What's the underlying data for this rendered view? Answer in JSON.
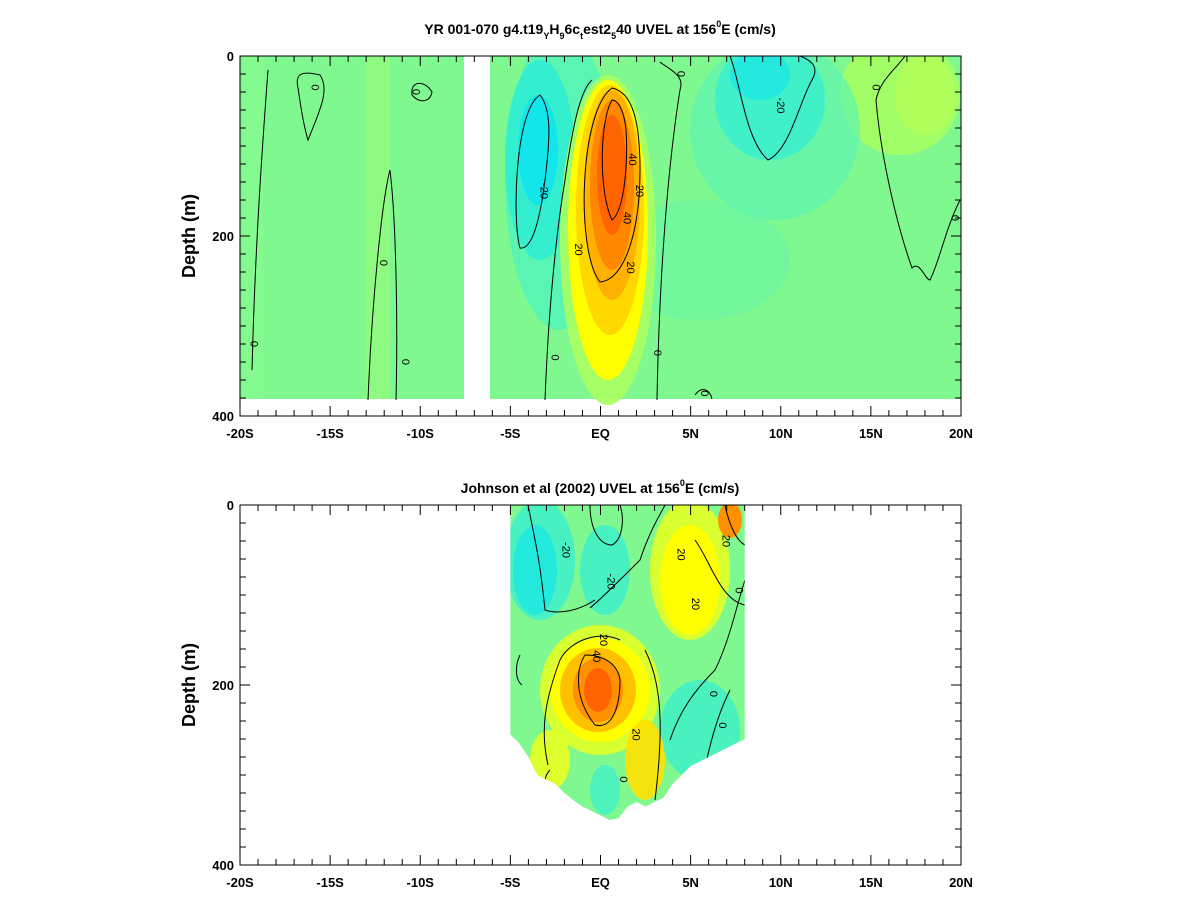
{
  "chart_data": [
    {
      "type": "heatmap",
      "title": {
        "prefix": "YR 001-070 g4.t19",
        "s1": "Y",
        "m1": "H",
        "s2": "9",
        "m2": "6c",
        "s3": "t",
        "m3": "est2",
        "s4": "5",
        "m4": "40 UVEL at 156",
        "sup": "0",
        "suffix": "E (cm/s)"
      },
      "ylabel": "Depth (m)",
      "xlim": [
        -20,
        20
      ],
      "ylim": [
        400,
        0
      ],
      "y_inverted": true,
      "x_ticks": [
        "-20S",
        "-15S",
        "-10S",
        "-5S",
        "EQ",
        "5N",
        "10N",
        "15N",
        "20N"
      ],
      "x_tick_values": [
        -20,
        -15,
        -10,
        -5,
        0,
        5,
        10,
        15,
        20
      ],
      "y_ticks": [
        "0",
        "200",
        "400"
      ],
      "y_tick_values": [
        0,
        200,
        400
      ],
      "colorscale": [
        "#00e0f8",
        "#40f0c8",
        "#80f890",
        "#a8ff60",
        "#ffff00",
        "#ffc000",
        "#ff8800",
        "#ff5000"
      ],
      "data_extent": {
        "lat": [
          -20,
          20
        ],
        "depth": [
          0,
          383
        ]
      },
      "gap": [
        -7.6,
        -6.2
      ],
      "features": [
        {
          "kind": "core",
          "lat": 0,
          "depth": 175,
          "value": 55
        },
        {
          "kind": "core",
          "lat": -3.5,
          "depth": 120,
          "value": -25
        },
        {
          "kind": "core",
          "lat": 10,
          "depth": 80,
          "value": -25
        },
        {
          "kind": "core",
          "lat": 19,
          "depth": 80,
          "value": 12
        }
      ],
      "contour_labels": [
        {
          "text": "0",
          "lat": -15.8,
          "depth": 35
        },
        {
          "text": "0",
          "lat": -10.2,
          "depth": 40
        },
        {
          "text": "0",
          "lat": -12,
          "depth": 230
        },
        {
          "text": "0",
          "lat": -10.8,
          "depth": 340
        },
        {
          "text": "0",
          "lat": -19.2,
          "depth": 320
        },
        {
          "text": "-20",
          "lat": -3.1,
          "depth": 150
        },
        {
          "text": "20",
          "lat": -1.2,
          "depth": 215
        },
        {
          "text": "40",
          "lat": 1.8,
          "depth": 115
        },
        {
          "text": "20",
          "lat": 2.2,
          "depth": 150
        },
        {
          "text": "40",
          "lat": 1.5,
          "depth": 180
        },
        {
          "text": "20",
          "lat": 1.7,
          "depth": 235
        },
        {
          "text": "0",
          "lat": -2.5,
          "depth": 335
        },
        {
          "text": "0",
          "lat": 3.2,
          "depth": 330
        },
        {
          "text": "0",
          "lat": 4.5,
          "depth": 20
        },
        {
          "text": "-20",
          "lat": 10,
          "depth": 55
        },
        {
          "text": "0",
          "lat": 15.3,
          "depth": 35
        },
        {
          "text": "0",
          "lat": 19.7,
          "depth": 180
        },
        {
          "text": "0",
          "lat": 5.8,
          "depth": 375
        }
      ]
    },
    {
      "type": "heatmap",
      "title": {
        "prefix": "Johnson et al (2002) UVEL at 156",
        "sup": "0",
        "suffix": "E (cm/s)"
      },
      "ylabel": "Depth (m)",
      "xlim": [
        -20,
        20
      ],
      "ylim": [
        400,
        0
      ],
      "y_inverted": true,
      "x_ticks": [
        "-20S",
        "-15S",
        "-10S",
        "-5S",
        "EQ",
        "5N",
        "10N",
        "15N",
        "20N"
      ],
      "x_tick_values": [
        -20,
        -15,
        -10,
        -5,
        0,
        5,
        10,
        15,
        20
      ],
      "y_ticks": [
        "0",
        "200",
        "400"
      ],
      "y_tick_values": [
        0,
        200,
        400
      ],
      "colorscale": [
        "#00e0f8",
        "#40f0c8",
        "#80f890",
        "#a8ff60",
        "#ffff00",
        "#ffc000",
        "#ff8800",
        "#ff5000"
      ],
      "data_extent": {
        "lat": [
          -5,
          8
        ]
      },
      "bottom_boundary_depth": [
        [
          -5,
          255
        ],
        [
          -4.5,
          265
        ],
        [
          -4,
          280
        ],
        [
          -3.5,
          300
        ],
        [
          -3,
          305
        ],
        [
          -2.5,
          310
        ],
        [
          -2,
          320
        ],
        [
          -1.5,
          328
        ],
        [
          -1,
          335
        ],
        [
          -0.5,
          340
        ],
        [
          0,
          345
        ],
        [
          0.5,
          350
        ],
        [
          1,
          348
        ],
        [
          1.5,
          335
        ],
        [
          2,
          330
        ],
        [
          2.5,
          335
        ],
        [
          3,
          330
        ],
        [
          3.5,
          325
        ],
        [
          4,
          310
        ],
        [
          4.5,
          300
        ],
        [
          5,
          290
        ],
        [
          5.5,
          285
        ],
        [
          6,
          280
        ],
        [
          6.5,
          275
        ],
        [
          7,
          270
        ],
        [
          7.5,
          265
        ],
        [
          8,
          260
        ]
      ],
      "features": [
        {
          "kind": "core",
          "lat": -0.3,
          "depth": 205,
          "value": 50
        },
        {
          "kind": "core",
          "lat": 4.5,
          "depth": 70,
          "value": 25
        },
        {
          "kind": "core",
          "lat": -3.5,
          "depth": 60,
          "value": -25
        },
        {
          "kind": "core",
          "lat": 0.5,
          "depth": 70,
          "value": -20
        }
      ],
      "contour_labels": [
        {
          "text": "-20",
          "lat": -1.9,
          "depth": 50
        },
        {
          "text": "-20",
          "lat": 0.6,
          "depth": 85
        },
        {
          "text": "20",
          "lat": 4.5,
          "depth": 55
        },
        {
          "text": "20",
          "lat": 7,
          "depth": 40
        },
        {
          "text": "20",
          "lat": 5.3,
          "depth": 110
        },
        {
          "text": "0",
          "lat": 7.7,
          "depth": 95
        },
        {
          "text": "20",
          "lat": 0.2,
          "depth": 150
        },
        {
          "text": "40",
          "lat": -0.2,
          "depth": 168
        },
        {
          "text": "0",
          "lat": 6.3,
          "depth": 210
        },
        {
          "text": "0",
          "lat": 6.8,
          "depth": 245
        },
        {
          "text": "20",
          "lat": 2,
          "depth": 255
        },
        {
          "text": "0",
          "lat": 1.3,
          "depth": 305
        }
      ]
    }
  ]
}
